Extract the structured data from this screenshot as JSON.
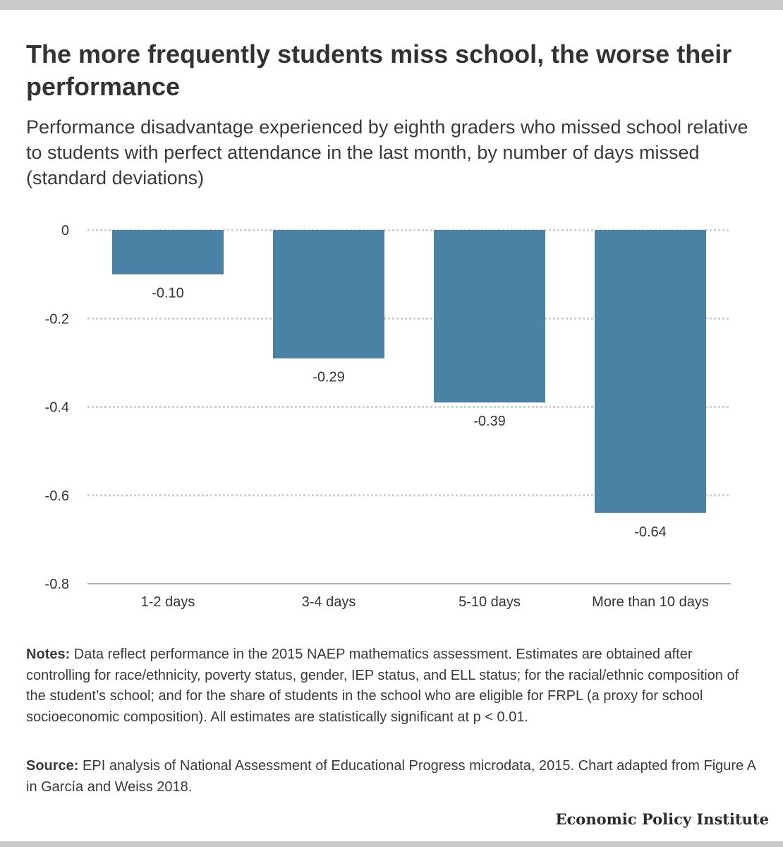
{
  "title": "The more frequently students miss school, the worse their performance",
  "subtitle": "Performance disadvantage experienced by eighth graders who missed school relative to students with perfect attendance in the last month, by number of days missed (standard deviations)",
  "notes": {
    "label": "Notes:",
    "text": "Data reflect performance in the 2015 NAEP mathematics assessment. Estimates are obtained after controlling for race/ethnicity, poverty status, gender, IEP status, and ELL status; for the racial/ethnic composition of the student’s school; and for the share of students in the school who are eligible for FRPL (a proxy for school socioeconomic composition). All estimates are statistically significant at p < 0.01."
  },
  "source": {
    "label": "Source:",
    "text": "EPI analysis of National Assessment of Educational Progress microdata, 2015. Chart adapted from Figure A in García and Weiss 2018."
  },
  "logo": "Economic Policy Institute",
  "colors": {
    "bar": "#4a82a5",
    "grid": "#d0d0d0",
    "baseline": "#b0b0b0"
  },
  "chart_data": {
    "type": "bar",
    "categories": [
      "1-2 days",
      "3-4 days",
      "5-10 days",
      "More than 10 days"
    ],
    "values": [
      -0.1,
      -0.29,
      -0.39,
      -0.64
    ],
    "value_labels": [
      "-0.10",
      "-0.29",
      "-0.39",
      "-0.64"
    ],
    "yticks": [
      0,
      -0.2,
      -0.4,
      -0.6,
      -0.8
    ],
    "ytick_labels": [
      "0",
      "-0.2",
      "-0.4",
      "-0.6",
      "-0.8"
    ],
    "ylim": [
      -0.8,
      0
    ],
    "grid": true,
    "title": "The more frequently students miss school, the worse their performance",
    "xlabel": "",
    "ylabel": ""
  }
}
